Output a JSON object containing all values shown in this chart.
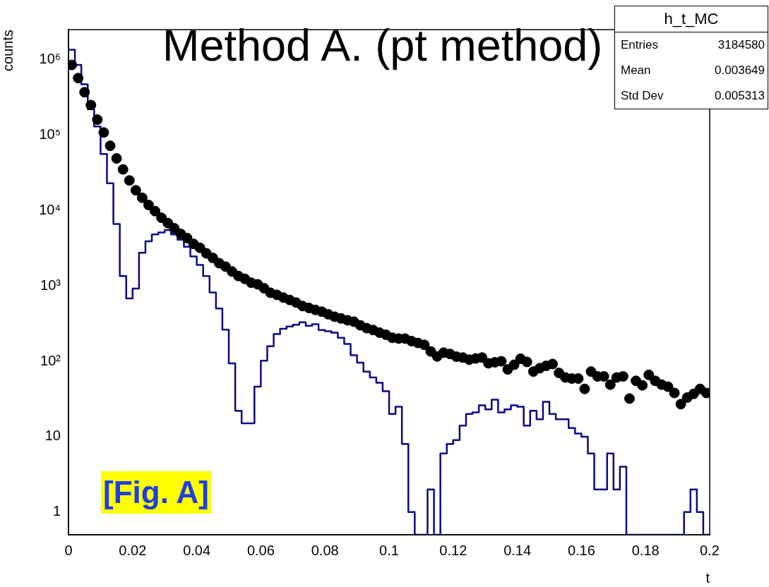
{
  "chart_data": {
    "type": "histogram",
    "title": "Method A. (pt method)",
    "xlabel": "t",
    "ylabel": "counts",
    "annotations": [
      "[Fig. A]",
      "h_t_MC",
      "Entries",
      "3184580",
      "Mean",
      "0.003649",
      "Std Dev",
      "0.005313"
    ],
    "bins": [
      0,
      0.002,
      0.004,
      0.006,
      0.008,
      0.01,
      0.012,
      0.014,
      0.016,
      0.018,
      0.02,
      0.022,
      0.024,
      0.026,
      0.028,
      0.03,
      0.032,
      0.034,
      0.036,
      0.038,
      0.04,
      0.042,
      0.044,
      0.046,
      0.048,
      0.05,
      0.052,
      0.054,
      0.056,
      0.058,
      0.06,
      0.062,
      0.064,
      0.066,
      0.068,
      0.07,
      0.072,
      0.074,
      0.076,
      0.078,
      0.08,
      0.082,
      0.084,
      0.086,
      0.088,
      0.09,
      0.092,
      0.094,
      0.096,
      0.098,
      0.1,
      0.102,
      0.104,
      0.106,
      0.108,
      0.11,
      0.112,
      0.114,
      0.116,
      0.118,
      0.12,
      0.122,
      0.124,
      0.126,
      0.128,
      0.13,
      0.132,
      0.134,
      0.136,
      0.138,
      0.14,
      0.142,
      0.144,
      0.146,
      0.148,
      0.15,
      0.152,
      0.154,
      0.156,
      0.158,
      0.16,
      0.162,
      0.164,
      0.166,
      0.168,
      0.17,
      0.172,
      0.174,
      0.176,
      0.178,
      0.18,
      0.182,
      0.184,
      0.186,
      0.188,
      0.19,
      0.192,
      0.194,
      0.196,
      0.198,
      0.2
    ],
    "series": [
      {
        "color": "#0a0a80",
        "values": [
          1350000,
          850000,
          470000,
          220000,
          130000,
          56000,
          23000,
          6600,
          1350,
          680,
          920,
          2750,
          3900,
          4800,
          5100,
          5500,
          4800,
          4100,
          3300,
          2450,
          1900,
          1350,
          820,
          500,
          263,
          94,
          22,
          15,
          15,
          46,
          102,
          158,
          230,
          270,
          290,
          305,
          330,
          295,
          310,
          260,
          250,
          240,
          205,
          170,
          120,
          96,
          73,
          61,
          52,
          40,
          20,
          25,
          8,
          1,
          null,
          null,
          2,
          null,
          6,
          8,
          9,
          14,
          20,
          21,
          26,
          23,
          31,
          21,
          23,
          26,
          25,
          14,
          22,
          17,
          29,
          20,
          17,
          17,
          13,
          11,
          10,
          6,
          2,
          2,
          6,
          2,
          4,
          null,
          null,
          null,
          null,
          null,
          null,
          null,
          null,
          null,
          1,
          2,
          1,
          null
        ]
      },
      {
        "type": "scatter",
        "color": "#000000",
        "marker": "circle",
        "x": [
          0.001,
          0.003,
          0.005,
          0.007,
          0.009,
          0.011,
          0.013,
          0.015,
          0.017,
          0.019,
          0.021,
          0.023,
          0.025,
          0.027,
          0.029,
          0.031,
          0.033,
          0.035,
          0.037,
          0.039,
          0.041,
          0.043,
          0.045,
          0.047,
          0.049,
          0.051,
          0.053,
          0.055,
          0.057,
          0.059,
          0.061,
          0.063,
          0.065,
          0.067,
          0.069,
          0.071,
          0.073,
          0.075,
          0.077,
          0.079,
          0.081,
          0.083,
          0.085,
          0.087,
          0.089,
          0.091,
          0.093,
          0.095,
          0.097,
          0.099,
          0.101,
          0.103,
          0.105,
          0.107,
          0.109,
          0.111,
          0.113,
          0.115,
          0.117,
          0.119,
          0.121,
          0.123,
          0.125,
          0.127,
          0.129,
          0.131,
          0.133,
          0.135,
          0.137,
          0.139,
          0.141,
          0.143,
          0.145,
          0.147,
          0.149,
          0.151,
          0.153,
          0.155,
          0.157,
          0.159,
          0.161,
          0.163,
          0.165,
          0.167,
          0.169,
          0.171,
          0.173,
          0.175,
          0.177,
          0.179,
          0.181,
          0.183,
          0.185,
          0.187,
          0.189,
          0.191,
          0.193,
          0.195,
          0.197,
          0.199
        ],
        "values": [
          850000,
          570000,
          370000,
          250000,
          160000,
          108000,
          72000,
          49000,
          35000,
          25000,
          18500,
          14700,
          11800,
          9800,
          8000,
          6800,
          5800,
          4900,
          4300,
          3600,
          3200,
          2700,
          2350,
          2000,
          1800,
          1550,
          1350,
          1240,
          1100,
          1050,
          930,
          810,
          760,
          700,
          650,
          600,
          540,
          510,
          480,
          455,
          420,
          390,
          370,
          350,
          335,
          300,
          275,
          260,
          240,
          225,
          205,
          200,
          200,
          185,
          175,
          165,
          135,
          116,
          130,
          125,
          115,
          112,
          105,
          109,
          112,
          94,
          97,
          100,
          78,
          90,
          108,
          98,
          73,
          81,
          87,
          92,
          70,
          61,
          59,
          59,
          43,
          73,
          63,
          63,
          49,
          61,
          63,
          32,
          55,
          48,
          66,
          55,
          49,
          46,
          38,
          27,
          33,
          37,
          43,
          38
        ]
      }
    ],
    "xlim": [
      0,
      0.2
    ],
    "xticks": [
      0,
      0.02,
      0.04,
      0.06,
      0.08,
      0.1,
      0.12,
      0.14,
      0.16,
      0.18,
      0.2
    ],
    "ylim": [
      0.5,
      2500000
    ],
    "yticks": [
      1,
      10,
      {
        "value": 100,
        "label": "10²"
      },
      {
        "value": 1000,
        "label": "10³"
      },
      {
        "value": 10000,
        "label": "10⁴"
      },
      {
        "value": 100000,
        "label": "10⁵"
      },
      {
        "value": 1000000,
        "label": "10⁶"
      }
    ],
    "log": "y",
    "grid": false,
    "legend": false
  }
}
